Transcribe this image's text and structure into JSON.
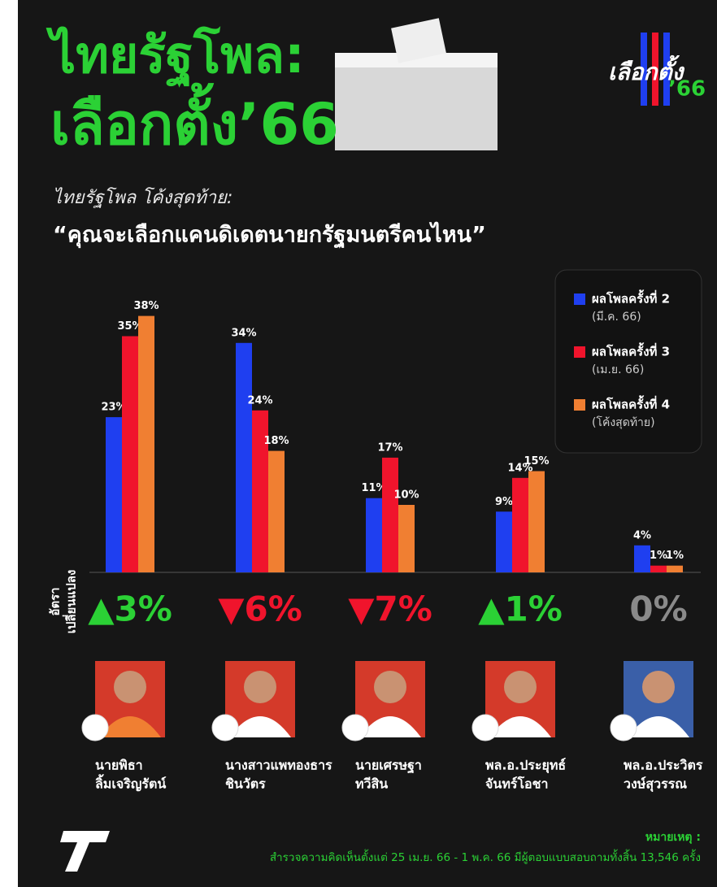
{
  "chart_data": {
    "type": "bar",
    "title": [
      "ไทยรัฐโพล:",
      "เลือกตั้ง’66"
    ],
    "logo": [
      "เลือกตั้ง",
      "’66"
    ],
    "subtitle": "ไทยรัฐโพล โค้งสุดท้าย:",
    "question": "“คุณจะเลือกแคนดิเดตนายกรัฐมนตรีคนไหน”",
    "categories": [
      [
        "นายพิธา",
        "ลิ้มเจริญรัตน์"
      ],
      [
        "นางสาวแพทองธาร",
        "ชินวัตร"
      ],
      [
        "นายเศรษฐา",
        "ทวีสิน"
      ],
      [
        "พล.อ.ประยุทธ์",
        "จันทร์โอชา"
      ],
      [
        "พล.อ.ประวิตร",
        "วงษ์สุวรรณ"
      ]
    ],
    "series": [
      {
        "name": "ผลโพลครั้งที่ 2",
        "period": "(มี.ค. 66)",
        "color": "#1f3ff0",
        "values": [
          23,
          34,
          11,
          9,
          4
        ],
        "value_labels": [
          "23%",
          "34%",
          "11%",
          "9%",
          "4%"
        ]
      },
      {
        "name": "ผลโพลครั้งที่ 3",
        "period": "(เม.ย. 66)",
        "color": "#f0142c",
        "values": [
          35,
          24,
          17,
          14,
          1
        ],
        "value_labels": [
          "35%",
          "24%",
          "17%",
          "14%",
          "1%"
        ]
      },
      {
        "name": "ผลโพลครั้งที่ 4",
        "period": "(โค้งสุดท้าย)",
        "color": "#f07f32",
        "values": [
          38,
          18,
          10,
          15,
          1
        ],
        "value_labels": [
          "38%",
          "18%",
          "10%",
          "15%",
          "1%"
        ]
      }
    ],
    "ylim": [
      0,
      40
    ],
    "change_label": [
      "อัตรา",
      "เปลี่ยนแปลง"
    ],
    "changes": [
      "▲3%",
      "▼6%",
      "▼7%",
      "▲1%",
      "0%"
    ],
    "change_colors": [
      "#2bd135",
      "#f0142c",
      "#f0142c",
      "#2bd135",
      "#8a8a8a"
    ],
    "note_title": "หมายเหตุ :",
    "note": "สำรวจความคิดเห็นตั้งแต่ 25 เม.ย. 66 - 1 พ.ค. 66 มีผู้ตอบแบบสอบถามทั้งสิ้น 13,546 ครั้ง"
  }
}
